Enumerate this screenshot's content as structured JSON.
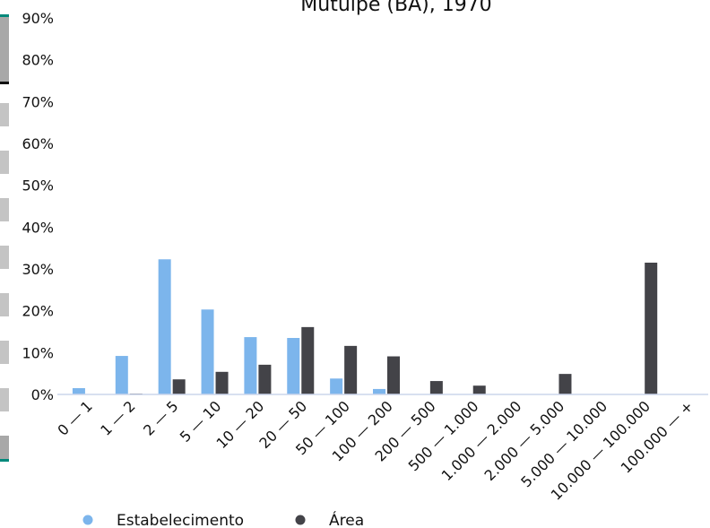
{
  "chart_data": {
    "type": "bar",
    "title": "Mutuípe (BA), 1970",
    "xlabel": "",
    "ylabel": "",
    "ylim": [
      0,
      90
    ],
    "y_ticks": [
      "0%",
      "10%",
      "20%",
      "30%",
      "40%",
      "50%",
      "60%",
      "70%",
      "80%",
      "90%"
    ],
    "grid": false,
    "legend_position": "bottom-left",
    "categories": [
      "0 — 1",
      "1 — 2",
      "2 — 5",
      "5 — 10",
      "10 — 20",
      "20 — 50",
      "50 — 100",
      "100 — 200",
      "200 — 500",
      "500 — 1.000",
      "1.000 — 2.000",
      "2.000 — 5.000",
      "5.000 — 10.000",
      "10.000 — 100.000",
      "100.000 — +"
    ],
    "series": [
      {
        "name": "Estabelecimento",
        "color": "#7cb5ec",
        "values": [
          1.5,
          9.2,
          32.3,
          20.3,
          13.7,
          13.5,
          3.8,
          1.3,
          0,
          0,
          0,
          0,
          0,
          0,
          0
        ]
      },
      {
        "name": "Área",
        "color": "#434348",
        "values": [
          0,
          0.2,
          3.6,
          5.4,
          7.1,
          16.1,
          11.6,
          9.1,
          3.2,
          2.1,
          0,
          4.9,
          0,
          31.5,
          0
        ]
      }
    ]
  },
  "colors": {
    "axis_line": "#ccd6eb",
    "sidebar_accent": "#00897b",
    "sidebar_tab": "#c4c4c4"
  }
}
